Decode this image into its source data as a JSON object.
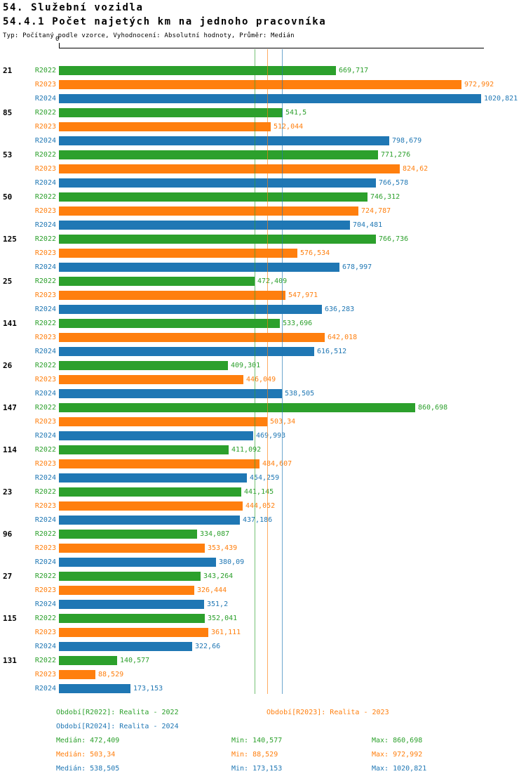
{
  "title": "54. Služební vozidla",
  "subtitle": "54.4.1 Počet najetých km na jednoho pracovníka",
  "meta": "Typ: Počítaný podle vzorce, Vyhodnocení: Absolutní hodnoty, Průměr: Medián",
  "chart_data": {
    "type": "bar",
    "orientation": "horizontal",
    "title": "54.4.1 Počet najetých km na jednoho pracovníka",
    "axis": {
      "zero_label": "0",
      "min": 0,
      "max_value": 1020.821
    },
    "grid": false,
    "legend_position": "bottom",
    "series_names": [
      "R2022",
      "R2023",
      "R2024"
    ],
    "colors": {
      "R2022": "#2ca02c",
      "R2023": "#ff7f0e",
      "R2024": "#1f77b4"
    },
    "groups": [
      {
        "label": "21",
        "bars": [
          {
            "series": "R2022",
            "value": 669.717,
            "text": "669,717"
          },
          {
            "series": "R2023",
            "value": 972.992,
            "text": "972,992"
          },
          {
            "series": "R2024",
            "value": 1020.821,
            "text": "1020,821"
          }
        ]
      },
      {
        "label": "85",
        "bars": [
          {
            "series": "R2022",
            "value": 541.5,
            "text": "541,5"
          },
          {
            "series": "R2023",
            "value": 512.044,
            "text": "512,044"
          },
          {
            "series": "R2024",
            "value": 798.679,
            "text": "798,679"
          }
        ]
      },
      {
        "label": "53",
        "bars": [
          {
            "series": "R2022",
            "value": 771.276,
            "text": "771,276"
          },
          {
            "series": "R2023",
            "value": 824.62,
            "text": "824,62"
          },
          {
            "series": "R2024",
            "value": 766.578,
            "text": "766,578"
          }
        ]
      },
      {
        "label": "50",
        "bars": [
          {
            "series": "R2022",
            "value": 746.312,
            "text": "746,312"
          },
          {
            "series": "R2023",
            "value": 724.787,
            "text": "724,787"
          },
          {
            "series": "R2024",
            "value": 704.481,
            "text": "704,481"
          }
        ]
      },
      {
        "label": "125",
        "bars": [
          {
            "series": "R2022",
            "value": 766.736,
            "text": "766,736"
          },
          {
            "series": "R2023",
            "value": 576.534,
            "text": "576,534"
          },
          {
            "series": "R2024",
            "value": 678.997,
            "text": "678,997"
          }
        ]
      },
      {
        "label": "25",
        "bars": [
          {
            "series": "R2022",
            "value": 472.409,
            "text": "472,409"
          },
          {
            "series": "R2023",
            "value": 547.971,
            "text": "547,971"
          },
          {
            "series": "R2024",
            "value": 636.283,
            "text": "636,283"
          }
        ]
      },
      {
        "label": "141",
        "bars": [
          {
            "series": "R2022",
            "value": 533.696,
            "text": "533,696"
          },
          {
            "series": "R2023",
            "value": 642.018,
            "text": "642,018"
          },
          {
            "series": "R2024",
            "value": 616.512,
            "text": "616,512"
          }
        ]
      },
      {
        "label": "26",
        "bars": [
          {
            "series": "R2022",
            "value": 409.301,
            "text": "409,301"
          },
          {
            "series": "R2023",
            "value": 446.049,
            "text": "446,049"
          },
          {
            "series": "R2024",
            "value": 538.505,
            "text": "538,505"
          }
        ]
      },
      {
        "label": "147",
        "bars": [
          {
            "series": "R2022",
            "value": 860.698,
            "text": "860,698"
          },
          {
            "series": "R2023",
            "value": 503.34,
            "text": "503,34"
          },
          {
            "series": "R2024",
            "value": 469.993,
            "text": "469,993"
          }
        ]
      },
      {
        "label": "114",
        "bars": [
          {
            "series": "R2022",
            "value": 411.092,
            "text": "411,092"
          },
          {
            "series": "R2023",
            "value": 484.607,
            "text": "484,607"
          },
          {
            "series": "R2024",
            "value": 454.259,
            "text": "454,259"
          }
        ]
      },
      {
        "label": "23",
        "bars": [
          {
            "series": "R2022",
            "value": 441.145,
            "text": "441,145"
          },
          {
            "series": "R2023",
            "value": 444.052,
            "text": "444,052"
          },
          {
            "series": "R2024",
            "value": 437.186,
            "text": "437,186"
          }
        ]
      },
      {
        "label": "96",
        "bars": [
          {
            "series": "R2022",
            "value": 334.087,
            "text": "334,087"
          },
          {
            "series": "R2023",
            "value": 353.439,
            "text": "353,439"
          },
          {
            "series": "R2024",
            "value": 380.09,
            "text": "380,09"
          }
        ]
      },
      {
        "label": "27",
        "bars": [
          {
            "series": "R2022",
            "value": 343.264,
            "text": "343,264"
          },
          {
            "series": "R2023",
            "value": 326.444,
            "text": "326,444"
          },
          {
            "series": "R2024",
            "value": 351.2,
            "text": "351,2"
          }
        ]
      },
      {
        "label": "115",
        "bars": [
          {
            "series": "R2022",
            "value": 352.041,
            "text": "352,041"
          },
          {
            "series": "R2023",
            "value": 361.111,
            "text": "361,111"
          },
          {
            "series": "R2024",
            "value": 322.66,
            "text": "322,66"
          }
        ]
      },
      {
        "label": "131",
        "bars": [
          {
            "series": "R2022",
            "value": 140.577,
            "text": "140,577"
          },
          {
            "series": "R2023",
            "value": 88.529,
            "text": "88,529"
          },
          {
            "series": "R2024",
            "value": 173.153,
            "text": "173,153"
          }
        ]
      }
    ],
    "medians": [
      {
        "series": "R2022",
        "value": 472.409,
        "text": "472,409"
      },
      {
        "series": "R2023",
        "value": 503.34,
        "text": "503,34"
      },
      {
        "series": "R2024",
        "value": 538.505,
        "text": "538,505"
      }
    ]
  },
  "legend": [
    {
      "series": "R2022",
      "text": "Období[R2022]: Realita - 2022"
    },
    {
      "series": "R2023",
      "text": "Období[R2023]: Realita - 2023"
    },
    {
      "series": "R2024",
      "text": "Období[R2024]: Realita - 2024"
    }
  ],
  "stats": [
    {
      "series": "R2022",
      "median": "Medián: 472,409",
      "min": "Min: 140,577",
      "max": "Max: 860,698"
    },
    {
      "series": "R2023",
      "median": "Medián: 503,34",
      "min": "Min: 88,529",
      "max": "Max: 972,992"
    },
    {
      "series": "R2024",
      "median": "Medián: 538,505",
      "min": "Min: 173,153",
      "max": "Max: 1020,821"
    }
  ]
}
